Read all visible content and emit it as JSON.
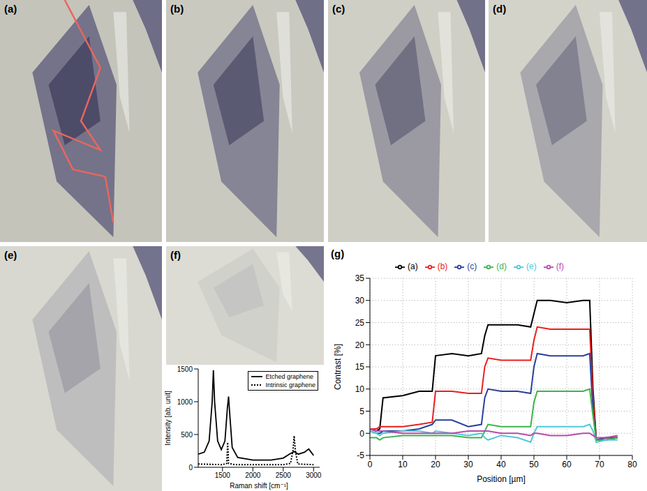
{
  "panels": [
    "(a)",
    "(b)",
    "(c)",
    "(d)",
    "(e)",
    "(f)"
  ],
  "chart_data": [
    {
      "type": "line",
      "panel": "(g)",
      "xlabel": "Position [µm]",
      "ylabel": "Contrast [%]",
      "xlim": [
        0,
        80
      ],
      "xticks": [
        0,
        10,
        20,
        30,
        40,
        50,
        60,
        70,
        80
      ],
      "ylim": [
        -5,
        35
      ],
      "yticks": [
        -5,
        0,
        5,
        10,
        15,
        20,
        25,
        30,
        35
      ],
      "grid": true,
      "legend": "top",
      "x": [
        0,
        2,
        3,
        4,
        10,
        15,
        19,
        20,
        25,
        30,
        34,
        35,
        36,
        40,
        45,
        49,
        50,
        51,
        55,
        60,
        65,
        67,
        68,
        69,
        72,
        75.5
      ],
      "series": [
        {
          "name": "(a)",
          "color": "#000000",
          "line_style": "solid",
          "values": [
            1,
            0.5,
            1,
            8,
            8.5,
            9.5,
            9.5,
            17.5,
            18,
            17.5,
            18,
            22,
            24.5,
            24.5,
            24.5,
            24,
            27,
            30,
            30,
            29.5,
            30,
            30,
            10,
            -1.5,
            -1.5,
            -1
          ]
        },
        {
          "name": "(b)",
          "color": "#e8201f",
          "line_style": "solid",
          "values": [
            1,
            1,
            1.5,
            1.5,
            1.5,
            2,
            2.5,
            9.5,
            9.5,
            9,
            9,
            15,
            17,
            16.5,
            16.5,
            16.5,
            21,
            24,
            23.5,
            23.5,
            23.5,
            23.5,
            8,
            -1.5,
            -1,
            -1
          ]
        },
        {
          "name": "(c)",
          "color": "#2a3f9e",
          "line_style": "solid",
          "values": [
            0.5,
            0,
            0,
            0.5,
            0.5,
            1,
            2,
            3,
            3,
            1.5,
            2,
            8,
            10,
            9.5,
            9.5,
            9,
            15,
            18,
            17.5,
            17.5,
            17.5,
            18,
            5,
            -1.5,
            -1,
            -1
          ]
        },
        {
          "name": "(d)",
          "color": "#3cb44b",
          "line_style": "solid",
          "values": [
            -1,
            -1,
            -1.5,
            -1,
            -0.5,
            -0.5,
            -0.5,
            -0.5,
            -0.5,
            -1,
            -1,
            0.5,
            2,
            1.5,
            1.5,
            1.5,
            7,
            9.5,
            9.5,
            9.5,
            9.5,
            10,
            4,
            -1.5,
            -1.5,
            -1
          ]
        },
        {
          "name": "(e)",
          "color": "#4fc8d8",
          "line_style": "solid",
          "values": [
            0.5,
            0,
            -0.5,
            0,
            0.5,
            0.5,
            0,
            0.5,
            0,
            -0.5,
            0,
            -1,
            -1.5,
            -0.5,
            -1,
            -2,
            0,
            1.5,
            1.5,
            1.5,
            1.5,
            2,
            0.5,
            -2,
            -1.5,
            -1.5
          ]
        },
        {
          "name": "(f)",
          "color": "#b84aad",
          "line_style": "solid",
          "values": [
            1,
            0.5,
            0.5,
            0.5,
            0,
            0,
            0,
            0,
            0,
            0.5,
            0.5,
            0.5,
            0.5,
            0,
            0,
            -0.5,
            0,
            0,
            -0.5,
            -0.5,
            0,
            0,
            -0.5,
            -1,
            -1,
            -0.5
          ]
        }
      ]
    },
    {
      "type": "line",
      "xlabel": "Raman shift [cm⁻¹]",
      "ylabel": "Intensity [ab. unit]",
      "xlim": [
        1100,
        3100
      ],
      "xticks": [
        1500,
        2000,
        2500,
        3000
      ],
      "ylim": [
        0,
        1500
      ],
      "yticks": [
        0,
        500,
        1000,
        1500
      ],
      "grid": false,
      "legend": "upper right",
      "series": [
        {
          "name": "Etched graphene",
          "color": "#000000",
          "line_style": "solid",
          "x": [
            1100,
            1200,
            1280,
            1330,
            1350,
            1370,
            1420,
            1480,
            1540,
            1580,
            1600,
            1620,
            1660,
            1750,
            2000,
            2300,
            2500,
            2600,
            2680,
            2750,
            2850,
            2920,
            2960,
            3000
          ],
          "values": [
            200,
            230,
            400,
            1000,
            1480,
            1000,
            400,
            270,
            400,
            900,
            1080,
            800,
            300,
            150,
            110,
            110,
            140,
            200,
            240,
            200,
            230,
            280,
            230,
            180
          ]
        },
        {
          "name": "Intrinsic graphene",
          "color": "#000000",
          "line_style": "dotted",
          "x": [
            1100,
            1500,
            1570,
            1585,
            1600,
            1700,
            2500,
            2620,
            2660,
            2680,
            2700,
            2740,
            3000
          ],
          "values": [
            50,
            40,
            60,
            380,
            60,
            40,
            40,
            60,
            250,
            480,
            250,
            50,
            40
          ]
        }
      ]
    }
  ]
}
